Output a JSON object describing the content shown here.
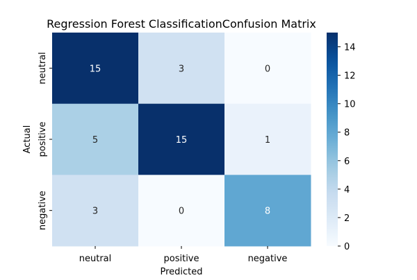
{
  "chart_data": {
    "type": "heatmap",
    "title": "Regression Forest ClassificationConfusion Matrix",
    "xlabel": "Predicted",
    "ylabel": "Actual",
    "x_categories": [
      "neutral",
      "positive",
      "negative"
    ],
    "y_categories": [
      "neutral",
      "positive",
      "negative"
    ],
    "values": [
      [
        15,
        3,
        0
      ],
      [
        5,
        15,
        1
      ],
      [
        3,
        0,
        8
      ]
    ],
    "colormap": "Blues",
    "color_range": [
      0,
      15
    ],
    "colorbar_ticks": [
      0,
      2,
      4,
      6,
      8,
      10,
      12,
      14
    ],
    "annotation_colors": {
      "dark": "#ffffff",
      "light": "#262626"
    }
  }
}
